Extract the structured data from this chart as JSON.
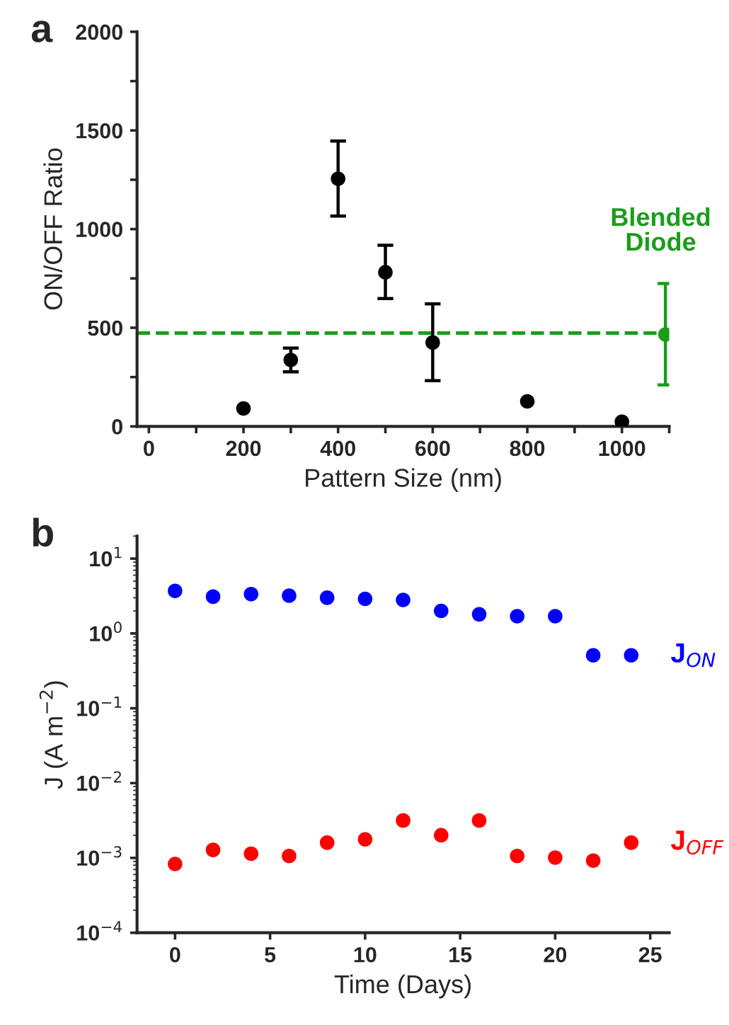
{
  "chart_data": [
    {
      "type": "scatter",
      "title": "a",
      "xlabel": "Pattern Size (nm)",
      "ylabel": "ON/OFF Ratio",
      "xlim": [
        -25,
        1100
      ],
      "ylim": [
        0,
        2000
      ],
      "xticks": [
        0,
        {
          "value": 100,
          "label": null
        },
        200,
        {
          "value": 300,
          "label": null
        },
        400,
        {
          "value": 500,
          "label": null
        },
        600,
        {
          "value": 700,
          "label": null
        },
        800,
        {
          "value": 900,
          "label": null
        },
        1000,
        {
          "value": 1100,
          "label": null
        }
      ],
      "yticks": [
        0,
        {
          "value": 250,
          "label": null
        },
        500,
        {
          "value": 750,
          "label": null
        },
        1000,
        {
          "value": 1250,
          "label": null
        },
        1500,
        {
          "value": 1750,
          "label": null
        },
        2000
      ],
      "marker": "circle",
      "legend": false,
      "grid": false,
      "series": [
        {
          "color": "#000000",
          "x": [
            200,
            300,
            400,
            500,
            600,
            800,
            1000
          ],
          "values": [
            91,
            337,
            1255,
            781,
            425,
            127,
            24
          ],
          "errors": [
            null,
            [
              277,
              397
            ],
            [
              1066,
              1446
            ],
            [
              648,
              918
            ],
            [
              232,
              621
            ],
            null,
            null
          ]
        },
        {
          "name": "Blended Diode",
          "color": "#1a9e1a",
          "x": [
            1092
          ],
          "values": [
            466
          ],
          "errors": [
            [
              210,
              724
            ]
          ]
        }
      ],
      "ref_lines": [
        {
          "axis": "y",
          "value": 473,
          "color": "#1a9e1a",
          "line_style": "dashed"
        }
      ]
    },
    {
      "type": "scatter",
      "title": "b",
      "xlabel": "Time (Days)",
      "ylabel": "J (A m$^{−2}$)",
      "log": "y",
      "xlim": [
        -2,
        26
      ],
      "ylim": [
        0.0001,
        20
      ],
      "xticks": [
        0,
        5,
        10,
        15,
        20,
        25
      ],
      "yticks": [
        {
          "value": 0.0001,
          "label": "10$^{−4}$"
        },
        {
          "value": 0.001,
          "label": "10$^{−3}$"
        },
        {
          "value": 0.01,
          "label": "10$^{−2}$"
        },
        {
          "value": 0.1,
          "label": "10$^{−1}$"
        },
        {
          "value": 1,
          "label": "10$^{0}$"
        },
        {
          "value": 10,
          "label": "10$^{1}$"
        }
      ],
      "marker": "circle",
      "legend": false,
      "grid": false,
      "series": [
        {
          "name": "J$_{ON}$",
          "color": "#0000ff",
          "x": [
            0,
            2,
            4,
            6,
            8,
            10,
            12,
            14,
            16,
            18,
            20,
            22,
            24
          ],
          "values": [
            3.7,
            3.1,
            3.35,
            3.2,
            3.0,
            2.9,
            2.8,
            2.0,
            1.8,
            1.7,
            1.7,
            0.51,
            0.51
          ]
        },
        {
          "name": "J$_{OFF}$",
          "color": "#ff0000",
          "x": [
            0,
            2,
            4,
            6,
            8,
            10,
            12,
            14,
            16,
            18,
            20,
            22,
            24
          ],
          "values": [
            0.00083,
            0.00128,
            0.00114,
            0.00106,
            0.0016,
            0.00177,
            0.00316,
            0.00201,
            0.00316,
            0.00106,
            0.00101,
            0.00092,
            0.0016
          ]
        }
      ]
    }
  ]
}
